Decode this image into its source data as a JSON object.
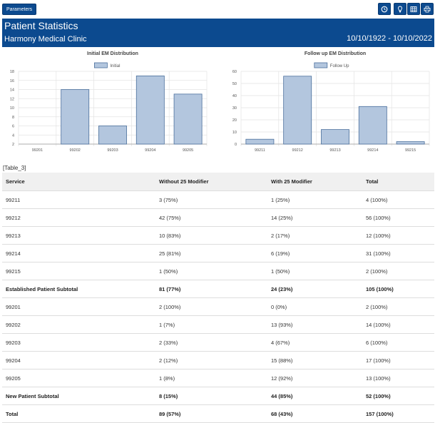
{
  "toolbar": {
    "parameters_label": "Parameters",
    "icons": [
      "history-icon",
      "lightbulb-icon",
      "grid-icon",
      "print-icon"
    ]
  },
  "header": {
    "title": "Patient Statistics",
    "clinic": "Harmony Medical Clinic",
    "date_range": "10/10/1922 - 10/10/2022"
  },
  "colors": {
    "brand": "#0c4a8f",
    "bar_fill": "#b3c6de",
    "bar_stroke": "#4a6f9c"
  },
  "chart_data": [
    {
      "type": "bar",
      "title": "Initial EM Distribution",
      "categories": [
        "99201",
        "99202",
        "99203",
        "99204",
        "99205"
      ],
      "series": [
        {
          "name": "Initial",
          "values": [
            2,
            14,
            6,
            17,
            13
          ]
        }
      ],
      "ylim": [
        2,
        18
      ],
      "yticks": [
        2,
        4,
        6,
        8,
        10,
        12,
        14,
        16,
        18
      ],
      "legend": "top-center",
      "grid": true
    },
    {
      "type": "bar",
      "title": "Follow up EM Distribution",
      "categories": [
        "99211",
        "99212",
        "99213",
        "99214",
        "99215"
      ],
      "series": [
        {
          "name": "Follow Up",
          "values": [
            4,
            56,
            12,
            31,
            2
          ]
        }
      ],
      "ylim": [
        0,
        60
      ],
      "yticks": [
        0,
        10,
        20,
        30,
        40,
        50,
        60
      ],
      "legend": "top-center",
      "grid": true
    }
  ],
  "table": {
    "label": "[Table_3]",
    "headers": [
      "Service",
      "Without 25 Modifier",
      "With 25 Modifier",
      "Total"
    ],
    "rows": [
      {
        "cells": [
          "99211",
          "3 (75%)",
          "1 (25%)",
          "4 (100%)"
        ],
        "bold": false
      },
      {
        "cells": [
          "99212",
          "42 (75%)",
          "14 (25%)",
          "56 (100%)"
        ],
        "bold": false
      },
      {
        "cells": [
          "99213",
          "10 (83%)",
          "2 (17%)",
          "12 (100%)"
        ],
        "bold": false
      },
      {
        "cells": [
          "99214",
          "25 (81%)",
          "6 (19%)",
          "31 (100%)"
        ],
        "bold": false
      },
      {
        "cells": [
          "99215",
          "1 (50%)",
          "1 (50%)",
          "2 (100%)"
        ],
        "bold": false
      },
      {
        "cells": [
          "Established Patient Subtotal",
          "81 (77%)",
          "24 (23%)",
          "105 (100%)"
        ],
        "bold": true
      },
      {
        "cells": [
          "99201",
          "2 (100%)",
          "0 (0%)",
          "2 (100%)"
        ],
        "bold": false
      },
      {
        "cells": [
          "99202",
          "1 (7%)",
          "13 (93%)",
          "14 (100%)"
        ],
        "bold": false
      },
      {
        "cells": [
          "99203",
          "2 (33%)",
          "4 (67%)",
          "6 (100%)"
        ],
        "bold": false
      },
      {
        "cells": [
          "99204",
          "2 (12%)",
          "15 (88%)",
          "17 (100%)"
        ],
        "bold": false
      },
      {
        "cells": [
          "99205",
          "1 (8%)",
          "12 (92%)",
          "13 (100%)"
        ],
        "bold": false
      },
      {
        "cells": [
          "New Patient Subtotal",
          "8 (15%)",
          "44 (85%)",
          "52 (100%)"
        ],
        "bold": true
      },
      {
        "cells": [
          "Total",
          "89 (57%)",
          "68 (43%)",
          "157 (100%)"
        ],
        "bold": true
      }
    ]
  }
}
